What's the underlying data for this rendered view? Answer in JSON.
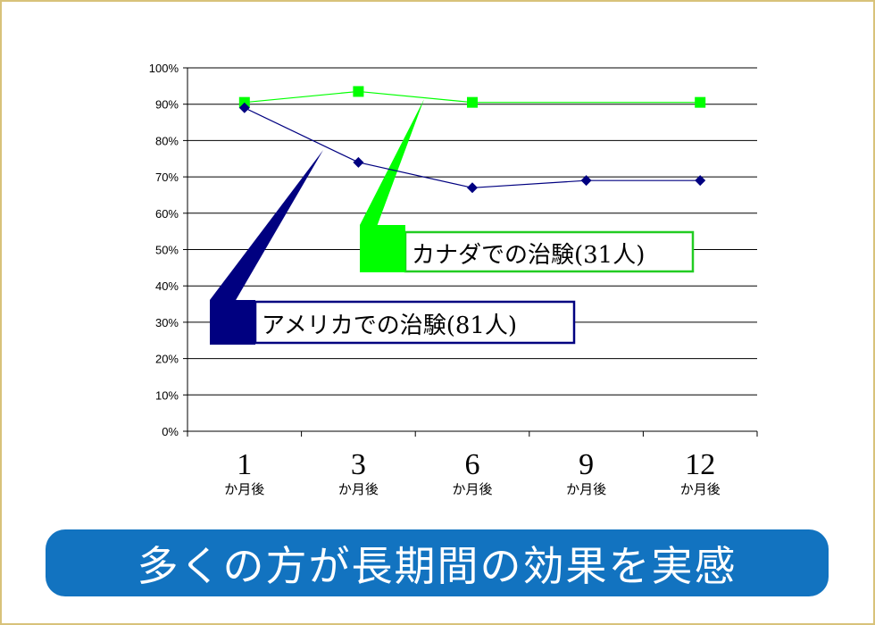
{
  "chart_data": {
    "type": "line",
    "categories": [
      "1",
      "3",
      "6",
      "9",
      "12"
    ],
    "category_sub": "か月後",
    "series": [
      {
        "name": "カナダでの治験(31人)",
        "values": [
          90.5,
          93.5,
          90.5,
          null,
          90.5
        ],
        "color": "#00ff00",
        "marker": "square"
      },
      {
        "name": "アメリカでの治験(81人)",
        "values": [
          89,
          74,
          67,
          69,
          69
        ],
        "color": "#000080",
        "marker": "diamond"
      }
    ],
    "y_ticks": [
      "0%",
      "10%",
      "20%",
      "30%",
      "40%",
      "50%",
      "60%",
      "70%",
      "80%",
      "90%",
      "100%"
    ],
    "ylim": [
      0,
      100
    ],
    "grid": true,
    "colors": {
      "canada_box_border": "#22cc22",
      "usa_box_border": "#000080"
    }
  },
  "callouts": {
    "canada": "カナダでの治験(31人)",
    "usa": "アメリカでの治験(81人)"
  },
  "banner": {
    "text": "多くの方が長期間の効果を実感",
    "color": "#1273c0"
  }
}
